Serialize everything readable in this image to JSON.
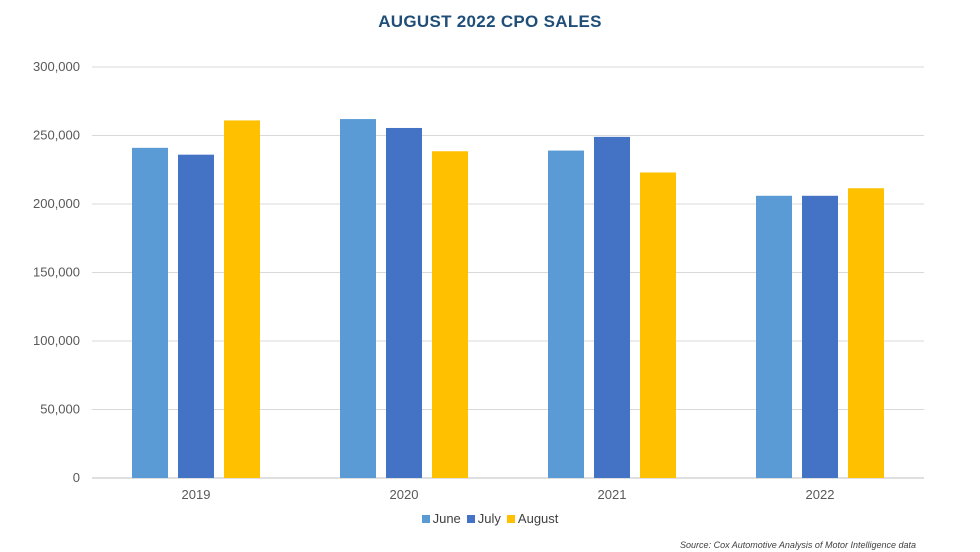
{
  "chart_data": {
    "type": "bar",
    "title": "AUGUST 2022 CPO SALES",
    "categories": [
      "2019",
      "2020",
      "2021",
      "2022"
    ],
    "series": [
      {
        "name": "June",
        "color": "#5b9bd5",
        "values": [
          241000,
          262000,
          239000,
          206000
        ]
      },
      {
        "name": "July",
        "color": "#4472c4",
        "values": [
          236000,
          255500,
          249000,
          206000
        ]
      },
      {
        "name": "August",
        "color": "#ffc000",
        "values": [
          261000,
          238500,
          223000,
          211500
        ]
      }
    ],
    "ylim": [
      0,
      300000
    ],
    "yticks": [
      "0",
      "50,000",
      "100,000",
      "150,000",
      "200,000",
      "250,000",
      "300,000"
    ],
    "grid": true,
    "legend": "bottom",
    "xlabel": "",
    "ylabel": "",
    "source": "Source: Cox Automotive Analysis of Motor Intelligence data"
  }
}
